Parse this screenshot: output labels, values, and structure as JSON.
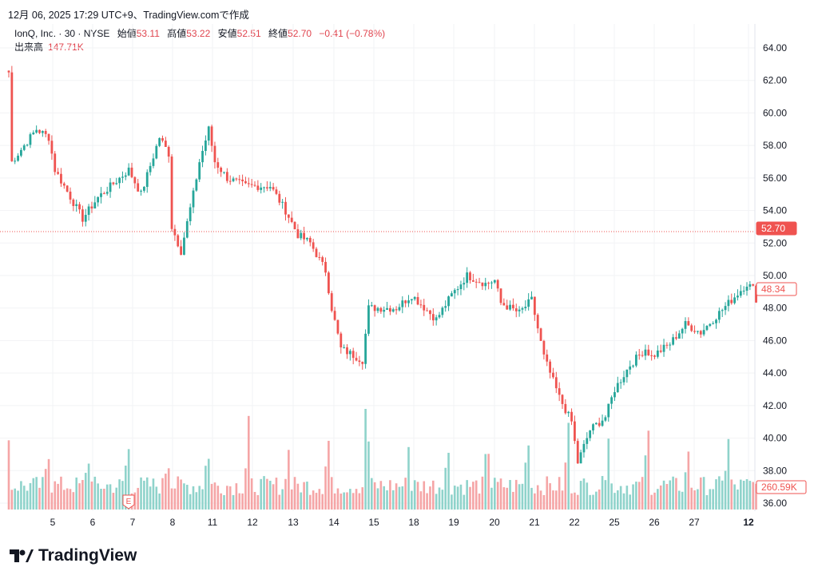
{
  "header": {
    "caption": "12月 06, 2025 17:29 UTC+9、TradingView.comで作成"
  },
  "legend": {
    "symbol": "IonQ, Inc. · 30 · NYSE",
    "open_label": "始値",
    "open": "53.11",
    "high_label": "高値",
    "high": "53.22",
    "low_label": "安値",
    "low": "52.51",
    "close_label": "終値",
    "close": "52.70",
    "change": "−0.41 (−0.78%)",
    "volume_label": "出来高",
    "volume": "147.71K"
  },
  "brand": "TradingView",
  "chart_data": {
    "type": "candlestick",
    "title": "IonQ, Inc. · 30 · NYSE",
    "ylim": [
      36,
      64
    ],
    "y_ticks": [
      "64.00",
      "62.00",
      "60.00",
      "58.00",
      "56.00",
      "54.00",
      "52.00",
      "50.00",
      "48.00",
      "46.00",
      "44.00",
      "42.00",
      "40.00",
      "38.00",
      "36.00"
    ],
    "x_ticks": [
      "5",
      "6",
      "7",
      "8",
      "11",
      "12",
      "13",
      "14",
      "15",
      "18",
      "19",
      "20",
      "21",
      "22",
      "25",
      "26",
      "27",
      "12"
    ],
    "earnings_marker": "E",
    "last_price_label": "52.70",
    "current_price_label": "48.34",
    "volume_label": "260.59K",
    "colors": {
      "up": "#26a69a",
      "down": "#ef5350",
      "up_vol": "#8fd3cb",
      "down_vol": "#f5a5a6"
    },
    "price_path": [
      [
        0,
        62.5
      ],
      [
        1,
        57
      ],
      [
        9,
        59
      ],
      [
        13,
        58.5
      ],
      [
        15,
        56.5
      ],
      [
        24,
        53.5
      ],
      [
        29,
        54.8
      ],
      [
        39,
        56.5
      ],
      [
        43,
        55
      ],
      [
        49,
        58.5
      ],
      [
        52,
        57.5
      ],
      [
        53,
        53
      ],
      [
        56,
        51.5
      ],
      [
        60,
        55
      ],
      [
        62,
        57
      ],
      [
        65,
        59
      ],
      [
        67,
        57
      ],
      [
        71,
        56
      ],
      [
        77,
        55.5
      ],
      [
        85,
        55.5
      ],
      [
        90,
        54
      ],
      [
        94,
        52.5
      ],
      [
        98,
        52
      ],
      [
        103,
        50.3
      ],
      [
        105,
        48
      ],
      [
        108,
        45.5
      ],
      [
        115,
        44.8
      ],
      [
        117,
        48
      ],
      [
        121,
        48
      ],
      [
        126,
        48
      ],
      [
        131,
        48.8
      ],
      [
        139,
        47.3
      ],
      [
        144,
        48.8
      ],
      [
        149,
        50
      ],
      [
        155,
        49.5
      ],
      [
        158,
        49.7
      ],
      [
        160,
        48.3
      ],
      [
        166,
        47.7
      ],
      [
        170,
        48.5
      ],
      [
        174,
        45
      ],
      [
        179,
        42.5
      ],
      [
        183,
        41
      ],
      [
        185,
        38.5
      ],
      [
        189,
        40.5
      ],
      [
        194,
        41.3
      ],
      [
        197,
        43
      ],
      [
        202,
        44.5
      ],
      [
        207,
        45.5
      ],
      [
        209,
        45
      ],
      [
        215,
        45.8
      ],
      [
        220,
        47
      ],
      [
        225,
        46.5
      ],
      [
        230,
        47.5
      ],
      [
        234,
        48.3
      ],
      [
        240,
        49.5
      ],
      [
        242,
        49.2
      ],
      [
        243,
        48.34
      ]
    ]
  }
}
